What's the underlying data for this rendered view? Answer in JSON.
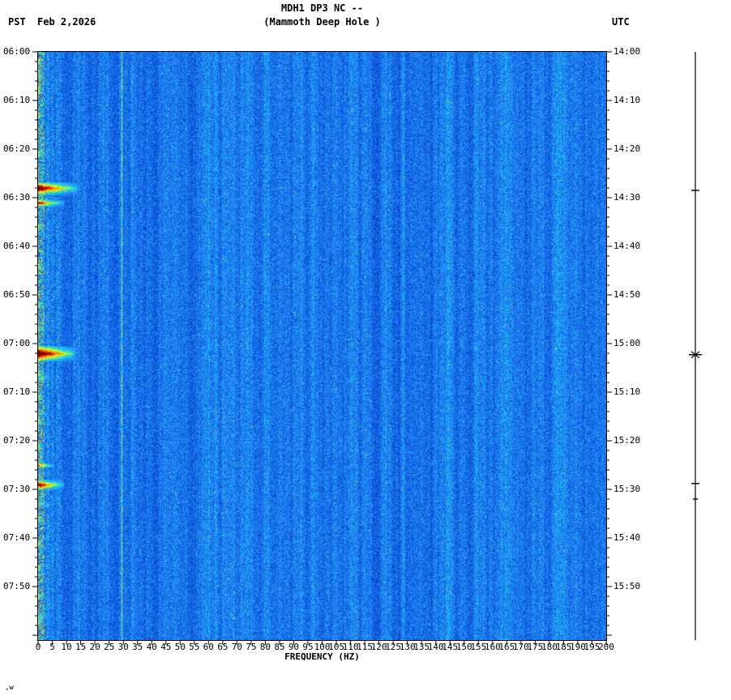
{
  "header": {
    "tz_left": "PST",
    "date": "Feb 2,2026",
    "title_line1": "MDH1 DP3 NC --",
    "title_line2": "(Mammoth Deep Hole )",
    "tz_right": "UTC"
  },
  "footer": {
    "corner_text": ",w"
  },
  "chart_data": {
    "type": "heatmap",
    "title": "MDH1 DP3 NC -- (Mammoth Deep Hole )",
    "subtitle": "Seismic spectrogram, PST Feb 2,2026 06:00 to ~08:01 (UTC 14:00 to ~16:01)",
    "xlabel": "FREQUENCY (HZ)",
    "freq_range_hz": [
      0,
      200
    ],
    "duration_min": 121,
    "x_tick_step_hz": 5,
    "x_tick_labels": [
      "0",
      "5",
      "10",
      "15",
      "20",
      "25",
      "30",
      "35",
      "40",
      "45",
      "50",
      "55",
      "60",
      "65",
      "70",
      "75",
      "80",
      "85",
      "90",
      "95",
      "100",
      "105",
      "110",
      "115",
      "120",
      "125",
      "130",
      "135",
      "140",
      "145",
      "150",
      "155",
      "160",
      "165",
      "170",
      "175",
      "180",
      "185",
      "190",
      "195",
      "200"
    ],
    "left_time_labels": [
      "06:00",
      "06:10",
      "06:20",
      "06:30",
      "06:40",
      "06:50",
      "07:00",
      "07:10",
      "07:20",
      "07:30",
      "07:40",
      "07:50"
    ],
    "right_time_labels": [
      "14:00",
      "14:10",
      "14:20",
      "14:30",
      "14:40",
      "14:50",
      "15:00",
      "15:10",
      "15:20",
      "15:30",
      "15:40",
      "15:50"
    ],
    "palette": "blue background noise -> cyan -> green -> yellow -> orange -> red -> dark red",
    "background_color_hex": "#1970eb",
    "features": {
      "low_freq_noise_band_hz": 8,
      "persistent_lines_hz": [
        {
          "hz": 29.5,
          "appearance": "yellow-green narrowband line, full duration"
        },
        {
          "hz": 60,
          "appearance": "faint pale-blue line, full duration"
        },
        {
          "hz": 120,
          "appearance": "very faint pale line"
        }
      ],
      "events": [
        {
          "pst": "06:28",
          "utc": "14:28",
          "minutes_from_start": 28,
          "max_freq_hz": 14,
          "intensity": 0.97,
          "duration_min": 2.5
        },
        {
          "pst": "06:31",
          "utc": "14:31",
          "minutes_from_start": 31,
          "max_freq_hz": 9,
          "intensity": 0.88,
          "duration_min": 1.5
        },
        {
          "pst": "07:02",
          "utc": "15:02",
          "minutes_from_start": 62,
          "max_freq_hz": 13,
          "intensity": 1.0,
          "duration_min": 3
        },
        {
          "pst": "07:07",
          "utc": "15:07",
          "minutes_from_start": 67,
          "max_freq_hz": 6,
          "intensity": 0.6,
          "duration_min": 1.5
        },
        {
          "pst": "07:25",
          "utc": "15:25",
          "minutes_from_start": 85,
          "max_freq_hz": 6,
          "intensity": 0.82,
          "duration_min": 1
        },
        {
          "pst": "07:29",
          "utc": "15:29",
          "minutes_from_start": 89,
          "max_freq_hz": 9,
          "intensity": 0.92,
          "duration_min": 2
        },
        {
          "pst": "07:33",
          "utc": "15:33",
          "minutes_from_start": 93,
          "max_freq_hz": 5,
          "intensity": 0.6,
          "duration_min": 1.5
        },
        {
          "pst": "07:42",
          "utc": "15:42",
          "minutes_from_start": 102,
          "max_freq_hz": 4,
          "intensity": 0.5,
          "duration_min": 1
        },
        {
          "pst": "07:56",
          "utc": "15:56",
          "minutes_from_start": 116,
          "max_freq_hz": 5,
          "intensity": 0.55,
          "duration_min": 2
        }
      ],
      "minor_activity_min": [
        2,
        5,
        8,
        13,
        21,
        36,
        44,
        52,
        57,
        66,
        71,
        76,
        81,
        96,
        101,
        106,
        112,
        117
      ]
    },
    "amplitude_trace_marks": [
      {
        "utc": "14:29",
        "minutes": 28.5,
        "half_width": 5,
        "star": false
      },
      {
        "utc": "15:02",
        "minutes": 62.3,
        "half_width": 8,
        "star": true
      },
      {
        "utc": "15:29",
        "minutes": 88.8,
        "half_width": 5,
        "star": false
      },
      {
        "utc": "15:32",
        "minutes": 92.0,
        "half_width": 3,
        "star": false
      }
    ]
  }
}
